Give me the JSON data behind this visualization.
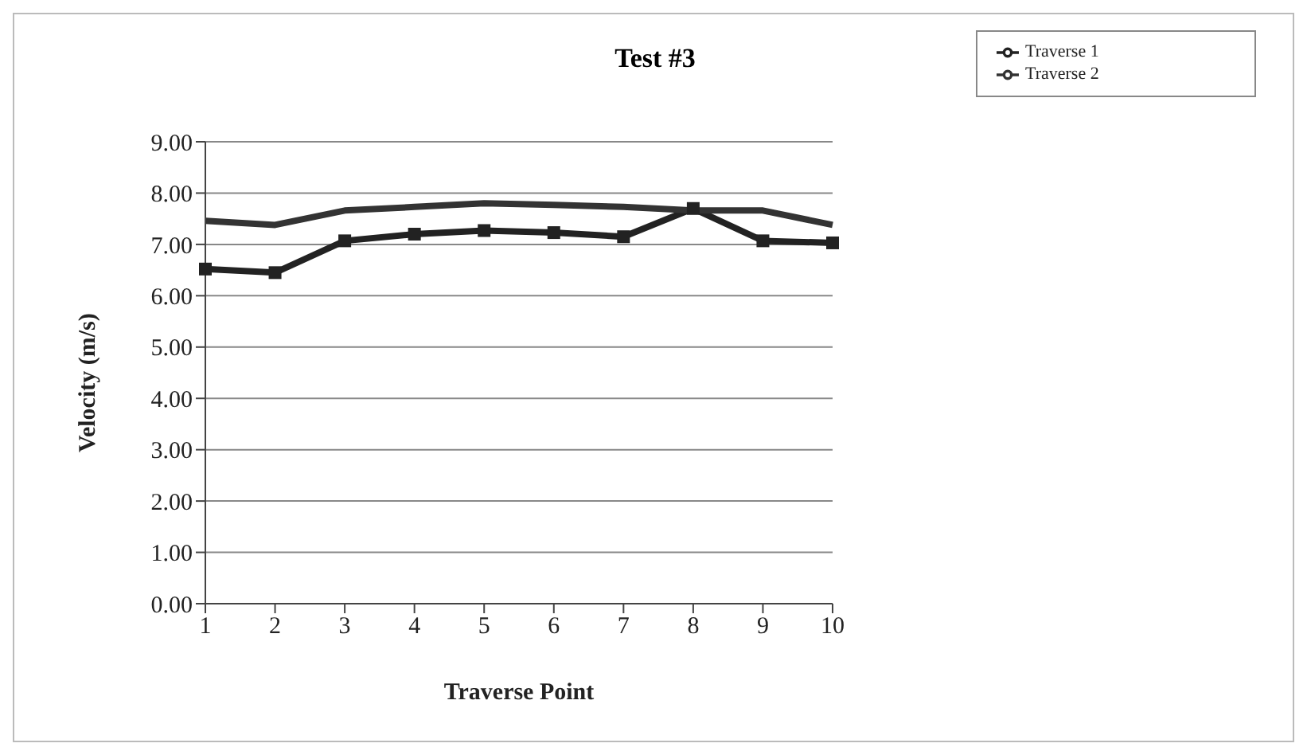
{
  "chart_data": {
    "type": "line",
    "title": "Test #3",
    "xlabel": "Traverse Point",
    "ylabel": "Velocity (m/s)",
    "categories": [
      "1",
      "2",
      "3",
      "4",
      "5",
      "6",
      "7",
      "8",
      "9",
      "10"
    ],
    "series": [
      {
        "name": "Traverse 1",
        "color": "#222222",
        "marker": "square",
        "values": [
          6.52,
          6.45,
          7.07,
          7.2,
          7.27,
          7.23,
          7.15,
          7.7,
          7.07,
          7.03
        ]
      },
      {
        "name": "Traverse 2",
        "color": "#333333",
        "marker": "none",
        "values": [
          7.46,
          7.38,
          7.66,
          7.73,
          7.8,
          7.77,
          7.73,
          7.66,
          7.66,
          7.38
        ]
      }
    ],
    "ylim": [
      0,
      9
    ],
    "yticks": [
      {
        "value": 0,
        "label": "0.00"
      },
      {
        "value": 1,
        "label": "1.00"
      },
      {
        "value": 2,
        "label": "2.00"
      },
      {
        "value": 3,
        "label": "3.00"
      },
      {
        "value": 4,
        "label": "4.00"
      },
      {
        "value": 5,
        "label": "5.00"
      },
      {
        "value": 6,
        "label": "6.00"
      },
      {
        "value": 7,
        "label": "7.00"
      },
      {
        "value": 8,
        "label": "8.00"
      },
      {
        "value": 9,
        "label": "9.00"
      }
    ],
    "grid": "y",
    "legend": "top right",
    "line_style": "solid"
  }
}
